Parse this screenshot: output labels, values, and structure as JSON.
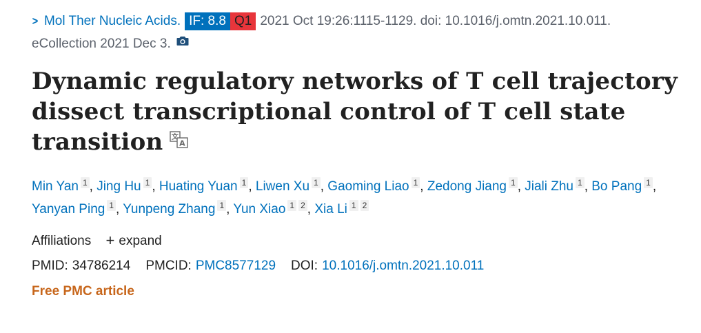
{
  "citation": {
    "chevron": ">",
    "journal": "Mol Ther Nucleic Acids.",
    "if_badge": "IF: 8.8",
    "quartile_badge": "Q1",
    "details": "2021 Oct 19:26:1115-1129. doi: 10.1016/j.omtn.2021.10.011.",
    "ecollection": "eCollection 2021 Dec 3.",
    "camera_icon": "camera-icon"
  },
  "title": "Dynamic regulatory networks of T cell trajectory dissect transcriptional control of T cell state transition",
  "translate_icon": "translate-icon",
  "authors": [
    {
      "name": "Min Yan",
      "affils": [
        "1"
      ]
    },
    {
      "name": "Jing Hu",
      "affils": [
        "1"
      ]
    },
    {
      "name": "Huating Yuan",
      "affils": [
        "1"
      ]
    },
    {
      "name": "Liwen Xu",
      "affils": [
        "1"
      ]
    },
    {
      "name": "Gaoming Liao",
      "affils": [
        "1"
      ]
    },
    {
      "name": "Zedong Jiang",
      "affils": [
        "1"
      ]
    },
    {
      "name": "Jiali Zhu",
      "affils": [
        "1"
      ]
    },
    {
      "name": "Bo Pang",
      "affils": [
        "1"
      ]
    },
    {
      "name": "Yanyan Ping",
      "affils": [
        "1"
      ]
    },
    {
      "name": "Yunpeng Zhang",
      "affils": [
        "1"
      ]
    },
    {
      "name": "Yun Xiao",
      "affils": [
        "1",
        "2"
      ]
    },
    {
      "name": "Xia Li",
      "affils": [
        "1",
        "2"
      ]
    }
  ],
  "affiliations": {
    "label": "Affiliations",
    "expand_label": "expand"
  },
  "ids": {
    "pmid_label": "PMID:",
    "pmid": "34786214",
    "pmcid_label": "PMCID:",
    "pmcid": "PMC8577129",
    "doi_label": "DOI:",
    "doi": "10.1016/j.omtn.2021.10.011"
  },
  "free_article": "Free PMC article",
  "colors": {
    "link": "#0071bc",
    "if_badge_bg": "#0071bc",
    "quartile_badge_bg": "#e8353b",
    "free_article": "#c7661b"
  }
}
